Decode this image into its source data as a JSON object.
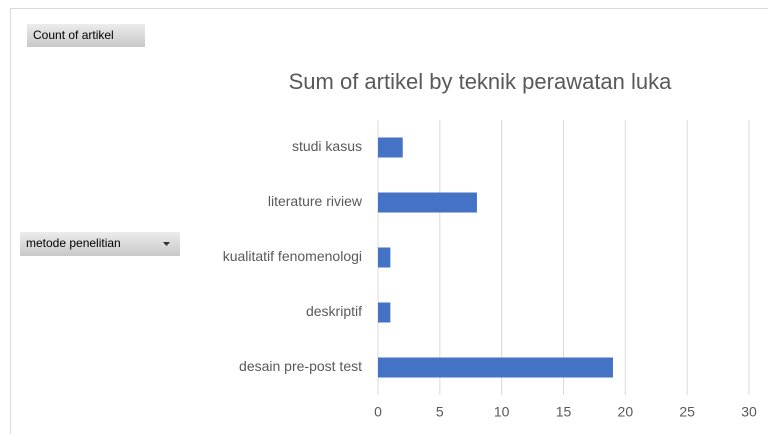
{
  "pivot_fields": {
    "values_field": "Count of artikel",
    "axis_field": "metode penelitian"
  },
  "chart_data": {
    "type": "bar",
    "orientation": "horizontal",
    "title": "Sum of artikel by teknik perawatan luka",
    "categories": [
      "studi kasus",
      "literature riview",
      "kualitatif fenomenologi",
      "deskriptif",
      "desain pre-post test"
    ],
    "values": [
      2,
      8,
      1,
      1,
      19
    ],
    "color": "#4472c4",
    "xlim": [
      0,
      30
    ],
    "xticks": [
      0,
      5,
      10,
      15,
      20,
      25,
      30
    ],
    "grid": true
  }
}
